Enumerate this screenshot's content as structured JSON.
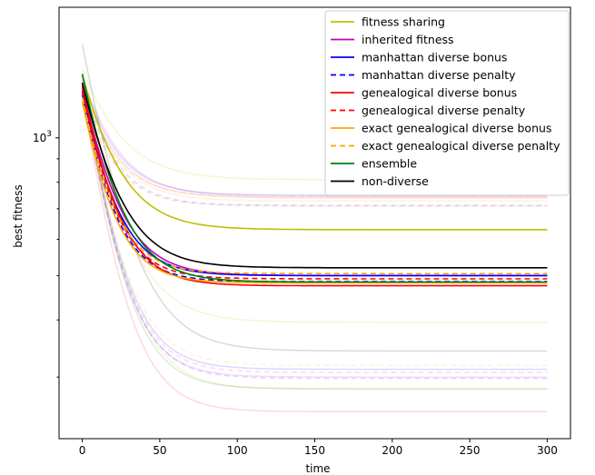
{
  "chart_data": {
    "type": "line",
    "title": "",
    "xlabel": "time",
    "ylabel": "best fitness",
    "xlim": [
      -15,
      315
    ],
    "ylim": [
      220,
      1930
    ],
    "y_scale": "log",
    "x_ticks": [
      0,
      50,
      100,
      150,
      200,
      250,
      300
    ],
    "x_tick_labels": [
      "0",
      "50",
      "100",
      "150",
      "200",
      "250",
      "300"
    ],
    "y_major_ticks": [
      1000
    ],
    "y_tick_labels": [
      {
        "base": "10",
        "exp": "3"
      }
    ],
    "y_minor_ticks": [
      300,
      400,
      500,
      600,
      700,
      800,
      900
    ],
    "legend_position": "top-right",
    "grid": false,
    "series": [
      {
        "name": "fitness sharing",
        "color": "#bfbf00",
        "dash": false,
        "start": 1370,
        "end": 630,
        "tau": 20
      },
      {
        "name": "inherited fitness",
        "color": "#bf00bf",
        "dash": false,
        "start": 1290,
        "end": 500,
        "tau": 18
      },
      {
        "name": "manhattan diverse bonus",
        "color": "#0000ff",
        "dash": false,
        "start": 1260,
        "end": 500,
        "tau": 17
      },
      {
        "name": "manhattan diverse penalty",
        "color": "#0000ff",
        "dash": true,
        "start": 1240,
        "end": 485,
        "tau": 16
      },
      {
        "name": "genealogical diverse bonus",
        "color": "#ff0000",
        "dash": false,
        "start": 1300,
        "end": 475,
        "tau": 17
      },
      {
        "name": "genealogical diverse penalty",
        "color": "#ff0000",
        "dash": true,
        "start": 1270,
        "end": 492,
        "tau": 16
      },
      {
        "name": "exact genealogical diverse bonus",
        "color": "#ffa500",
        "dash": false,
        "start": 1200,
        "end": 482,
        "tau": 16
      },
      {
        "name": "exact genealogical diverse penalty",
        "color": "#ffa500",
        "dash": true,
        "start": 1230,
        "end": 505,
        "tau": 16
      },
      {
        "name": "ensemble",
        "color": "#008000",
        "dash": false,
        "start": 1380,
        "end": 484,
        "tau": 18
      },
      {
        "name": "non-diverse",
        "color": "#000000",
        "dash": false,
        "start": 1320,
        "end": 520,
        "tau": 19
      }
    ],
    "background_series": [
      {
        "color": "#bfbf00",
        "dash": false,
        "start": 1420,
        "end": 810,
        "tau": 22
      },
      {
        "color": "#bfbf00",
        "dash": false,
        "start": 1350,
        "end": 395,
        "tau": 20
      },
      {
        "color": "#bfbf00",
        "dash": false,
        "start": 1300,
        "end": 282,
        "tau": 18
      },
      {
        "color": "#bf00bf",
        "dash": false,
        "start": 1360,
        "end": 745,
        "tau": 20
      },
      {
        "color": "#bf00bf",
        "dash": true,
        "start": 1300,
        "end": 307,
        "tau": 17
      },
      {
        "color": "#0000ff",
        "dash": false,
        "start": 1340,
        "end": 750,
        "tau": 19
      },
      {
        "color": "#0000ff",
        "dash": true,
        "start": 1300,
        "end": 712,
        "tau": 18
      },
      {
        "color": "#0000ff",
        "dash": false,
        "start": 1320,
        "end": 312,
        "tau": 17
      },
      {
        "color": "#0000ff",
        "dash": true,
        "start": 1290,
        "end": 298,
        "tau": 17
      },
      {
        "color": "#ff0000",
        "dash": false,
        "start": 1300,
        "end": 740,
        "tau": 19
      },
      {
        "color": "#ff0000",
        "dash": false,
        "start": 1250,
        "end": 252,
        "tau": 17
      },
      {
        "color": "#ff0000",
        "dash": true,
        "start": 1240,
        "end": 710,
        "tau": 18
      },
      {
        "color": "#ffa500",
        "dash": false,
        "start": 1280,
        "end": 728,
        "tau": 19
      },
      {
        "color": "#ffa500",
        "dash": true,
        "start": 1260,
        "end": 318,
        "tau": 18
      },
      {
        "color": "#ffa500",
        "dash": true,
        "start": 1230,
        "end": 745,
        "tau": 19
      },
      {
        "color": "#008000",
        "dash": false,
        "start": 1310,
        "end": 283,
        "tau": 17
      },
      {
        "color": "#000000",
        "dash": false,
        "start": 1600,
        "end": 342,
        "tau": 20
      },
      {
        "color": "#bf00bf",
        "dash": false,
        "start": 1280,
        "end": 300,
        "tau": 17
      }
    ]
  }
}
